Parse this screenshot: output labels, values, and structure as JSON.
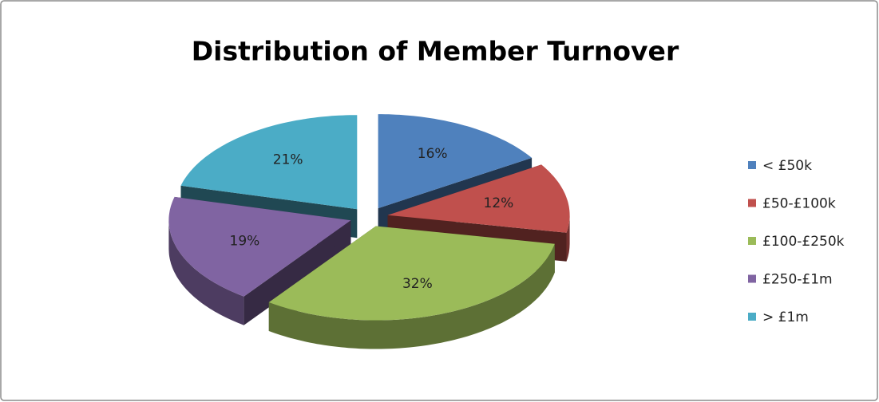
{
  "chart_data": {
    "type": "pie",
    "title": "Distribution of Member Turnover",
    "categories": [
      "< £50k",
      "£50-£100k",
      "£100-£250k",
      "£250-£1m",
      "> £1m"
    ],
    "values": [
      16,
      12,
      32,
      19,
      21
    ],
    "value_labels": [
      "16%",
      "12%",
      "32%",
      "19%",
      "21%"
    ],
    "colors": [
      "#4f81bd",
      "#c0504d",
      "#9bbb59",
      "#8064a2",
      "#4bacc6"
    ],
    "legend": "right"
  }
}
